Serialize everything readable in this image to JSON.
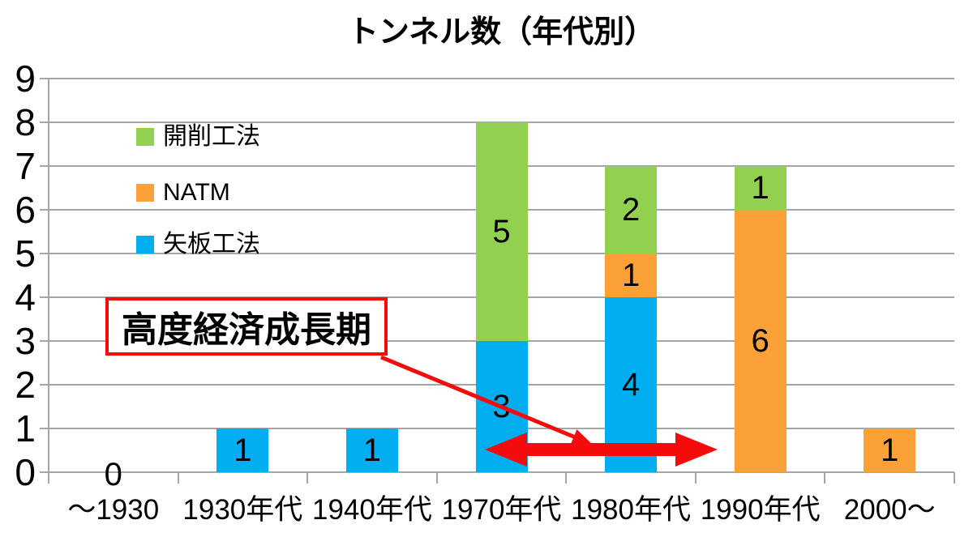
{
  "chart_data": {
    "type": "bar",
    "stacked": true,
    "title": "トンネル数（年代別）",
    "categories": [
      "～1930",
      "1930年代",
      "1940年代",
      "1970年代",
      "1980年代",
      "1990年代",
      "2000～"
    ],
    "series": [
      {
        "name": "矢板工法",
        "color": "#00AEEF",
        "values": [
          0,
          1,
          1,
          3,
          4,
          0,
          0
        ]
      },
      {
        "name": "NATM",
        "color": "#FCA137",
        "values": [
          0,
          0,
          0,
          0,
          1,
          6,
          1
        ]
      },
      {
        "name": "開削工法",
        "color": "#92D050",
        "values": [
          0,
          0,
          0,
          5,
          2,
          1,
          0
        ]
      }
    ],
    "legend": [
      "開削工法",
      "NATM",
      "矢板工法"
    ],
    "legend_position": "inside-top-left",
    "ylim": [
      0,
      9
    ],
    "yticks": [
      0,
      1,
      2,
      3,
      4,
      5,
      6,
      7,
      8,
      9
    ],
    "grid": true,
    "data_labels": true,
    "zero_label": "0",
    "annotation": {
      "text": "高度経済成長期",
      "color": "#F40B0B",
      "arrow": "double-headed arrow spanning 1970年代 to 1990年代 near y=0.5"
    },
    "colors": {
      "grid": "#A6A6A6",
      "text": "#000000",
      "background": "#FFFFFF"
    }
  }
}
